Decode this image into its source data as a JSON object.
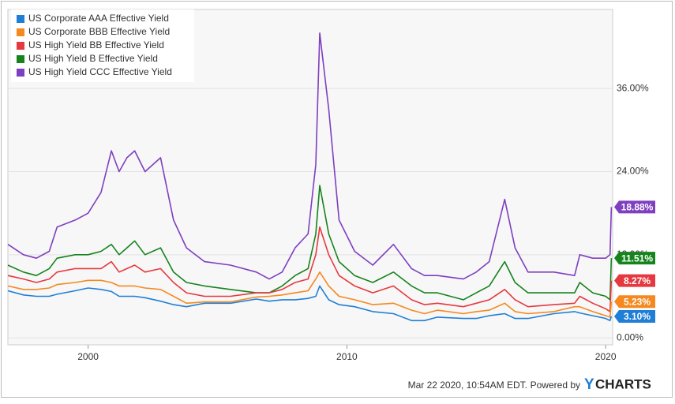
{
  "chart_data": {
    "type": "line",
    "x": [
      1996.9,
      1997.5,
      1998.0,
      1998.5,
      1998.8,
      1999.5,
      2000.0,
      2000.5,
      2000.9,
      2001.2,
      2001.5,
      2001.8,
      2002.2,
      2002.8,
      2003.3,
      2003.8,
      2004.5,
      2005.5,
      2006.5,
      2007.0,
      2007.5,
      2008.0,
      2008.5,
      2008.8,
      2008.95,
      2009.3,
      2009.7,
      2010.3,
      2011.0,
      2011.8,
      2012.5,
      2013.0,
      2013.5,
      2014.5,
      2015.0,
      2015.5,
      2016.1,
      2016.5,
      2017.0,
      2018.0,
      2018.8,
      2019.0,
      2019.5,
      2020.0,
      2020.17,
      2020.22
    ],
    "series": [
      {
        "name": "US Corporate AAA Effective Yield",
        "color": "#1f7fd6",
        "values": [
          6.8,
          6.2,
          6,
          6,
          6.3,
          6.8,
          7.2,
          7,
          6.7,
          6,
          6,
          6,
          5.8,
          5.3,
          4.8,
          4.5,
          5,
          5,
          5.6,
          5.3,
          5.5,
          5.5,
          5.7,
          6,
          7.5,
          5.5,
          4.8,
          4.5,
          3.8,
          3.5,
          2.5,
          2.5,
          3,
          2.8,
          2.8,
          3.2,
          3.5,
          2.8,
          2.8,
          3.5,
          3.8,
          3.6,
          3.2,
          2.8,
          2.5,
          3.1
        ],
        "value_labels": [
          null,
          null,
          null,
          null,
          null,
          null,
          null,
          null,
          null,
          null,
          null,
          null,
          null,
          null,
          null,
          null,
          null,
          null,
          null,
          null,
          null,
          null,
          null,
          null,
          null,
          null,
          null,
          null,
          null,
          null,
          null,
          null,
          null,
          null,
          null,
          null,
          null,
          null,
          null,
          null,
          null,
          null,
          null,
          null,
          null,
          "3.10%"
        ]
      },
      {
        "name": "US Corporate BBB Effective Yield",
        "color": "#f5891f",
        "values": [
          7.5,
          7,
          7,
          7.2,
          7.7,
          8,
          8.3,
          8.3,
          8,
          7.5,
          7.5,
          7.5,
          7.2,
          7,
          6,
          5,
          5.2,
          5.2,
          5.9,
          6,
          6.2,
          6.5,
          6.8,
          8.5,
          9.5,
          7.5,
          6,
          5.5,
          4.8,
          5,
          4,
          3.5,
          4,
          3.5,
          3.8,
          4,
          5,
          3.8,
          3.5,
          3.8,
          4.5,
          4.5,
          3.8,
          3.2,
          3.0,
          5.23
        ],
        "value_labels": [
          null,
          null,
          null,
          null,
          null,
          null,
          null,
          null,
          null,
          null,
          null,
          null,
          null,
          null,
          null,
          null,
          null,
          null,
          null,
          null,
          null,
          null,
          null,
          null,
          null,
          null,
          null,
          null,
          null,
          null,
          null,
          null,
          null,
          null,
          null,
          null,
          null,
          null,
          null,
          null,
          null,
          null,
          null,
          null,
          null,
          "5.23%"
        ]
      },
      {
        "name": "US High Yield BB Effective Yield",
        "color": "#e5393f",
        "values": [
          9,
          8.5,
          8,
          8.5,
          9.5,
          10,
          10,
          10,
          11,
          9.5,
          10,
          10.5,
          9.5,
          10,
          8,
          6.5,
          6,
          6,
          6.5,
          6.5,
          7,
          8,
          8.5,
          12,
          16,
          12,
          9,
          7.5,
          6.5,
          7.5,
          5.5,
          4.8,
          5,
          4.5,
          5,
          5.5,
          7,
          5.5,
          4.5,
          4.8,
          5,
          6,
          5,
          4.2,
          3.8,
          8.27
        ],
        "value_labels": [
          null,
          null,
          null,
          null,
          null,
          null,
          null,
          null,
          null,
          null,
          null,
          null,
          null,
          null,
          null,
          null,
          null,
          null,
          null,
          null,
          null,
          null,
          null,
          null,
          null,
          null,
          null,
          null,
          null,
          null,
          null,
          null,
          null,
          null,
          null,
          null,
          null,
          null,
          null,
          null,
          null,
          null,
          null,
          null,
          null,
          "8.27%"
        ]
      },
      {
        "name": "US High Yield B Effective Yield",
        "color": "#16831c",
        "values": [
          10.5,
          9.5,
          9,
          10,
          11.5,
          12,
          12,
          12.5,
          13.5,
          12,
          13,
          14,
          12,
          13,
          9.5,
          8,
          7.5,
          7,
          6.5,
          6.5,
          7.5,
          9,
          10,
          15,
          22,
          15,
          11,
          9,
          8,
          9.5,
          7.5,
          6.5,
          6.5,
          5.5,
          6.5,
          7.5,
          11,
          8,
          6.5,
          6.5,
          6.5,
          8,
          6.5,
          6,
          5.5,
          11.51
        ],
        "value_labels": [
          null,
          null,
          null,
          null,
          null,
          null,
          null,
          null,
          null,
          null,
          null,
          null,
          null,
          null,
          null,
          null,
          null,
          null,
          null,
          null,
          null,
          null,
          null,
          null,
          null,
          null,
          null,
          null,
          null,
          null,
          null,
          null,
          null,
          null,
          null,
          null,
          null,
          null,
          null,
          null,
          null,
          null,
          null,
          null,
          null,
          "11.51%"
        ]
      },
      {
        "name": "US High Yield CCC Effective Yield",
        "color": "#7e3fc0",
        "values": [
          13.5,
          12,
          11.5,
          12.5,
          16,
          17,
          18,
          21,
          27,
          24,
          26,
          27,
          24,
          26,
          17,
          13,
          11,
          10.5,
          9.5,
          8.5,
          9.5,
          13,
          15,
          25,
          44,
          33,
          17,
          12.5,
          10.5,
          13.5,
          10,
          9,
          9,
          8.5,
          9.5,
          11,
          20,
          13,
          9.5,
          9.5,
          9,
          12,
          11.5,
          11.5,
          12,
          18.88
        ],
        "value_labels": [
          null,
          null,
          null,
          null,
          null,
          null,
          null,
          null,
          null,
          null,
          null,
          null,
          null,
          null,
          null,
          null,
          null,
          null,
          null,
          null,
          null,
          null,
          null,
          null,
          null,
          null,
          null,
          null,
          null,
          null,
          null,
          null,
          null,
          null,
          null,
          null,
          null,
          null,
          null,
          null,
          null,
          null,
          null,
          null,
          null,
          "18.88%"
        ]
      }
    ],
    "xlim": [
      1996.9,
      2020.27
    ],
    "xticks": [
      2000,
      2010,
      2020
    ],
    "ylim": [
      -1,
      47.4
    ],
    "yticks": [
      {
        "value": 0,
        "label": "0.00%"
      },
      {
        "value": 12,
        "label": "12.00%"
      },
      {
        "value": 24,
        "label": "24.00%"
      },
      {
        "value": 36,
        "label": "36.00%"
      }
    ],
    "grid": true,
    "legend": "upper-left"
  },
  "footer": {
    "timestamp": "Mar 22 2020, 10:54AM EDT.",
    "powered": "Powered by",
    "brand_y": "Y",
    "brand_rest": "CHARTS"
  }
}
